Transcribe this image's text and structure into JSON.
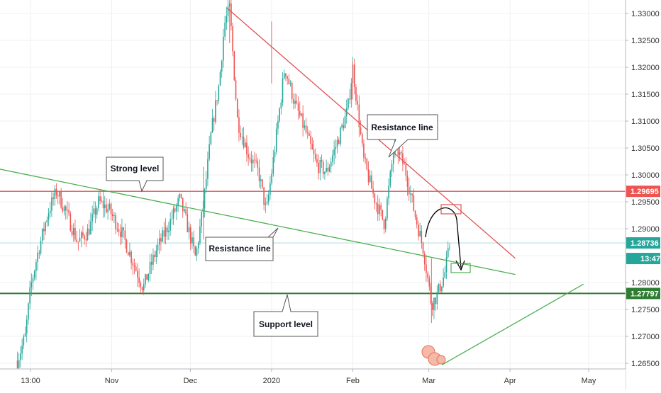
{
  "chart_data": {
    "type": "candlestick",
    "title": "",
    "xlabel": "",
    "ylabel": "",
    "ylim": [
      1.263,
      1.334
    ],
    "grid": true,
    "colors": {
      "up": "#26a69a",
      "down": "#ef5350",
      "resistance_trend": "#e05252",
      "level_line_red": "#e05252",
      "level_line_green": "#2e7d32",
      "green_trend": "#4caf50",
      "price_badge_red": "#ef5350",
      "price_badge_teal": "#26a69a",
      "price_badge_green": "#2e7d32"
    },
    "y_ticks": [
      "1.33000",
      "1.32500",
      "1.32000",
      "1.31500",
      "1.31000",
      "1.30500",
      "1.30000",
      "1.29500",
      "1.29000",
      "1.28500",
      "1.28000",
      "1.27500",
      "1.27000",
      "1.26500"
    ],
    "y_tick_values": [
      1.33,
      1.325,
      1.32,
      1.315,
      1.31,
      1.305,
      1.3,
      1.295,
      1.29,
      1.285,
      1.28,
      1.275,
      1.27,
      1.265
    ],
    "x_ticks": [
      "13:00",
      "Nov",
      "Dec",
      "2020",
      "Feb",
      "Mar",
      "Apr",
      "May"
    ],
    "x_tick_dates": [
      "2019-10-01",
      "2019-11-01",
      "2019-12-01",
      "2020-01-01",
      "2020-02-01",
      "2020-03-01",
      "2020-04-01",
      "2020-05-01"
    ],
    "price_labels": [
      {
        "text": "1.29695",
        "value": 1.29695,
        "kind": "red"
      },
      {
        "text": "1.28736",
        "value": 1.28736,
        "kind": "teal"
      },
      {
        "text": "13:47",
        "value": 1.28,
        "kind": "teal"
      },
      {
        "text": "1.27797",
        "value": 1.27797,
        "kind": "green"
      }
    ],
    "horizontal_levels": [
      {
        "value": 1.29695,
        "kind": "red"
      },
      {
        "value": 1.27797,
        "kind": "green"
      }
    ],
    "trendlines": [
      {
        "kind": "resistance",
        "from": [
          "2019-12-15",
          1.331
        ],
        "to": [
          "2020-04-03",
          1.2845
        ]
      },
      {
        "kind": "falling_green",
        "from": [
          "2019-09-18",
          1.3012
        ],
        "to": [
          "2020-04-03",
          1.2815
        ]
      },
      {
        "kind": "rising_green",
        "from": [
          "2020-03-06",
          1.2647
        ],
        "to": [
          "2020-04-29",
          1.2797
        ]
      }
    ],
    "anchors": [
      [
        "2019-09-26",
        1.2655
      ],
      [
        "2019-09-29",
        1.27
      ],
      [
        "2019-10-01",
        1.279
      ],
      [
        "2019-10-04",
        1.286
      ],
      [
        "2019-10-08",
        1.2935
      ],
      [
        "2019-10-11",
        1.297
      ],
      [
        "2019-10-15",
        1.2925
      ],
      [
        "2019-10-19",
        1.2875
      ],
      [
        "2019-10-23",
        1.2895
      ],
      [
        "2019-10-27",
        1.295
      ],
      [
        "2019-10-31",
        1.2935
      ],
      [
        "2019-11-05",
        1.289
      ],
      [
        "2019-11-09",
        1.284
      ],
      [
        "2019-11-13",
        1.279
      ],
      [
        "2019-11-18",
        1.286
      ],
      [
        "2019-11-23",
        1.291
      ],
      [
        "2019-11-27",
        1.2955
      ],
      [
        "2019-12-01",
        1.2885
      ],
      [
        "2019-12-03",
        1.2845
      ],
      [
        "2019-12-06",
        1.2945
      ],
      [
        "2019-12-09",
        1.308
      ],
      [
        "2019-12-12",
        1.317
      ],
      [
        "2019-12-14",
        1.328
      ],
      [
        "2019-12-16",
        1.331
      ],
      [
        "2019-12-19",
        1.31
      ],
      [
        "2019-12-23",
        1.304
      ],
      [
        "2019-12-27",
        1.3005
      ],
      [
        "2019-12-30",
        1.293
      ],
      [
        "2020-01-02",
        1.304
      ],
      [
        "2020-01-06",
        1.32
      ],
      [
        "2020-01-10",
        1.313
      ],
      [
        "2020-01-14",
        1.308
      ],
      [
        "2020-01-18",
        1.302
      ],
      [
        "2020-01-22",
        1.3005
      ],
      [
        "2020-01-26",
        1.306
      ],
      [
        "2020-01-30",
        1.312
      ],
      [
        "2020-02-01",
        1.32
      ],
      [
        "2020-02-05",
        1.303
      ],
      [
        "2020-02-09",
        1.296
      ],
      [
        "2020-02-13",
        1.291
      ],
      [
        "2020-02-17",
        1.306
      ],
      [
        "2020-02-21",
        1.301
      ],
      [
        "2020-02-25",
        1.292
      ],
      [
        "2020-02-28",
        1.286
      ],
      [
        "2020-03-02",
        1.276
      ],
      [
        "2020-03-04",
        1.2775
      ],
      [
        "2020-03-07",
        1.2815
      ],
      [
        "2020-03-09",
        1.287
      ]
    ],
    "annotations": {
      "strong_level": "Strong level",
      "resistance_top": "Resistance line",
      "resistance_bottom": "Resistance line",
      "support": "Support level"
    }
  }
}
